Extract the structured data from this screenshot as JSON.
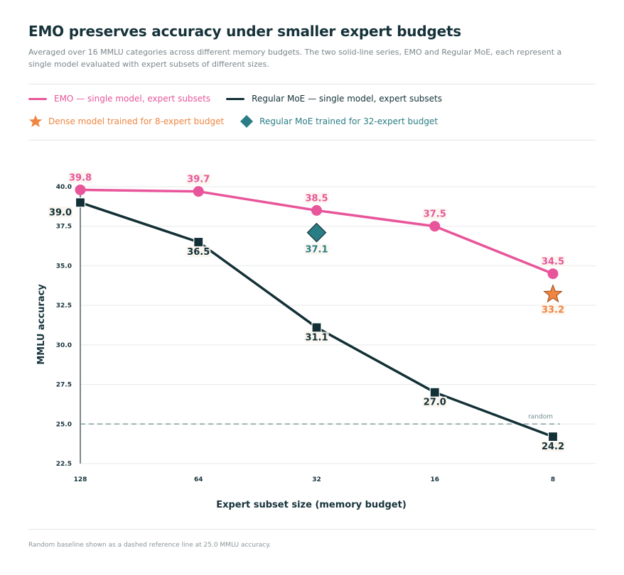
{
  "header": {
    "title": "EMO preserves accuracy under smaller expert budgets",
    "subtitle": "Averaged over 16 MMLU categories across different memory budgets. The two solid-line series, EMO and Regular MoE, each represent a single model evaluated with expert subsets of different sizes."
  },
  "legend": {
    "emo": "EMO — single model, expert subsets",
    "moe": "Regular MoE — single model, expert subsets",
    "dense": "Dense model trained for 8-expert budget",
    "moe32": "Regular MoE trained for 32-expert budget"
  },
  "colors": {
    "emo": "#e8559a",
    "moe": "#123036",
    "dense": "#ef8540",
    "moe32": "#2a7d85",
    "grid": "#e7e9ea",
    "random": "#6f8a8f"
  },
  "chart_data": {
    "type": "line",
    "categories": [
      "128",
      "64",
      "32",
      "16",
      "8"
    ],
    "series": [
      {
        "name": "EMO — single model, expert subsets",
        "values": [
          39.8,
          39.7,
          38.5,
          37.5,
          34.5
        ],
        "labels": [
          "39.8",
          "39.7",
          "38.5",
          "37.5",
          "34.5"
        ]
      },
      {
        "name": "Regular MoE — single model, expert subsets",
        "values": [
          39.0,
          36.5,
          31.1,
          27.0,
          24.2
        ],
        "labels": [
          "39.0",
          "36.5",
          "31.1",
          "27.0",
          "24.2"
        ]
      }
    ],
    "points": [
      {
        "name": "Dense model trained for 8-expert budget",
        "category": "8",
        "value": 33.2,
        "label": "33.2",
        "marker": "star"
      },
      {
        "name": "Regular MoE trained for 32-expert budget",
        "category": "32",
        "value": 37.1,
        "label": "37.1",
        "marker": "diamond"
      }
    ],
    "reference_line": {
      "value": 25.0,
      "label": "random",
      "style": "dashed"
    },
    "xlabel": "Expert subset size (memory budget)",
    "ylabel": "MMLU accuracy",
    "ylim": [
      22.5,
      40.0
    ],
    "yticks": [
      "40.0",
      "37.5",
      "35.0",
      "32.5",
      "30.0",
      "27.5",
      "25.0",
      "22.5"
    ],
    "ytick_values": [
      40.0,
      37.5,
      35.0,
      32.5,
      30.0,
      27.5,
      25.0,
      22.5
    ],
    "grid": true
  },
  "footer": {
    "note": "Random baseline shown as a dashed reference line at 25.0 MMLU accuracy."
  }
}
